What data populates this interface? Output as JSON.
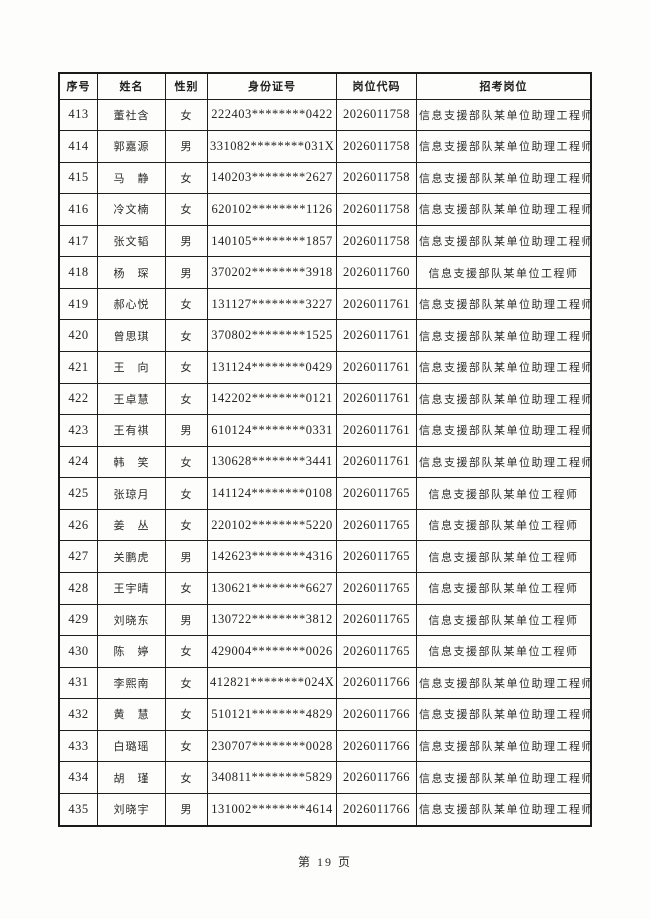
{
  "page": {
    "footer": "第 19 页"
  },
  "table": {
    "headers": [
      "序号",
      "姓名",
      "性别",
      "身份证号",
      "岗位代码",
      "招考岗位"
    ],
    "rows": [
      [
        "413",
        "董社含",
        "女",
        "222403********0422",
        "2026011758",
        "信息支援部队某单位助理工程师"
      ],
      [
        "414",
        "郭嘉源",
        "男",
        "331082********031X",
        "2026011758",
        "信息支援部队某单位助理工程师"
      ],
      [
        "415",
        "马　静",
        "女",
        "140203********2627",
        "2026011758",
        "信息支援部队某单位助理工程师"
      ],
      [
        "416",
        "冷文楠",
        "女",
        "620102********1126",
        "2026011758",
        "信息支援部队某单位助理工程师"
      ],
      [
        "417",
        "张文韬",
        "男",
        "140105********1857",
        "2026011758",
        "信息支援部队某单位助理工程师"
      ],
      [
        "418",
        "杨　琛",
        "男",
        "370202********3918",
        "2026011760",
        "信息支援部队某单位工程师"
      ],
      [
        "419",
        "郝心悦",
        "女",
        "131127********3227",
        "2026011761",
        "信息支援部队某单位助理工程师"
      ],
      [
        "420",
        "曾思琪",
        "女",
        "370802********1525",
        "2026011761",
        "信息支援部队某单位助理工程师"
      ],
      [
        "421",
        "王　向",
        "女",
        "131124********0429",
        "2026011761",
        "信息支援部队某单位助理工程师"
      ],
      [
        "422",
        "王卓慧",
        "女",
        "142202********0121",
        "2026011761",
        "信息支援部队某单位助理工程师"
      ],
      [
        "423",
        "王有祺",
        "男",
        "610124********0331",
        "2026011761",
        "信息支援部队某单位助理工程师"
      ],
      [
        "424",
        "韩　笑",
        "女",
        "130628********3441",
        "2026011761",
        "信息支援部队某单位助理工程师"
      ],
      [
        "425",
        "张琼月",
        "女",
        "141124********0108",
        "2026011765",
        "信息支援部队某单位工程师"
      ],
      [
        "426",
        "姜　丛",
        "女",
        "220102********5220",
        "2026011765",
        "信息支援部队某单位工程师"
      ],
      [
        "427",
        "关鹏虎",
        "男",
        "142623********4316",
        "2026011765",
        "信息支援部队某单位工程师"
      ],
      [
        "428",
        "王宇晴",
        "女",
        "130621********6627",
        "2026011765",
        "信息支援部队某单位工程师"
      ],
      [
        "429",
        "刘晓东",
        "男",
        "130722********3812",
        "2026011765",
        "信息支援部队某单位工程师"
      ],
      [
        "430",
        "陈　婷",
        "女",
        "429004********0026",
        "2026011765",
        "信息支援部队某单位工程师"
      ],
      [
        "431",
        "李熙南",
        "女",
        "412821********024X",
        "2026011766",
        "信息支援部队某单位助理工程师"
      ],
      [
        "432",
        "黄　慧",
        "女",
        "510121********4829",
        "2026011766",
        "信息支援部队某单位助理工程师"
      ],
      [
        "433",
        "白璐瑶",
        "女",
        "230707********0028",
        "2026011766",
        "信息支援部队某单位助理工程师"
      ],
      [
        "434",
        "胡　瑾",
        "女",
        "340811********5829",
        "2026011766",
        "信息支援部队某单位助理工程师"
      ],
      [
        "435",
        "刘晓宇",
        "男",
        "131002********4614",
        "2026011766",
        "信息支援部队某单位助理工程师"
      ]
    ]
  }
}
